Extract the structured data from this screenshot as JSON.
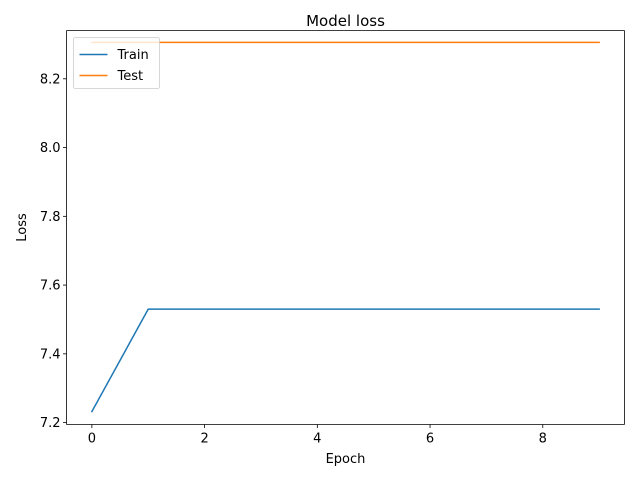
{
  "chart_data": {
    "type": "line",
    "title": "Model loss",
    "xlabel": "Epoch",
    "ylabel": "Loss",
    "x": [
      0,
      1,
      2,
      3,
      4,
      5,
      6,
      7,
      8,
      9
    ],
    "xlim": [
      -0.45,
      9.45
    ],
    "ylim": [
      7.1945,
      8.3405
    ],
    "xticks": [
      0,
      2,
      4,
      6,
      8
    ],
    "yticks": [
      7.2,
      7.4,
      7.6,
      7.8,
      8.0,
      8.2
    ],
    "xtick_labels": [
      "0",
      "2",
      "4",
      "6",
      "8"
    ],
    "ytick_labels": [
      "7.2",
      "7.4",
      "7.6",
      "7.8",
      "8.0",
      "8.2"
    ],
    "grid": false,
    "legend_position": "upper-left",
    "series": [
      {
        "name": "Train",
        "color": "#1f77b4",
        "values": [
          7.232,
          7.53,
          7.53,
          7.53,
          7.53,
          7.53,
          7.53,
          7.53,
          7.53,
          7.53
        ]
      },
      {
        "name": "Test",
        "color": "#ff7f0e",
        "values": [
          8.306,
          8.306,
          8.306,
          8.306,
          8.306,
          8.306,
          8.306,
          8.306,
          8.306,
          8.306
        ]
      }
    ]
  }
}
